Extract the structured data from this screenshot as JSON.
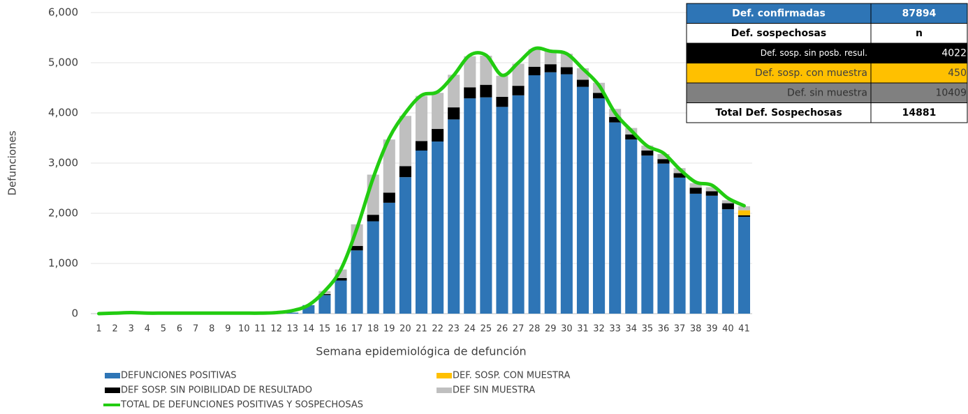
{
  "chart_data": {
    "type": "bar",
    "stacked": true,
    "x_label": "Semana epidemiológica de defunción",
    "y_label": "Defunciones",
    "categories": [
      "1",
      "2",
      "3",
      "4",
      "5",
      "6",
      "7",
      "8",
      "9",
      "10",
      "11",
      "12",
      "13",
      "14",
      "15",
      "16",
      "17",
      "18",
      "19",
      "20",
      "21",
      "22",
      "23",
      "24",
      "25",
      "26",
      "27",
      "28",
      "29",
      "30",
      "31",
      "32",
      "33",
      "34",
      "35",
      "36",
      "37",
      "38",
      "39",
      "40",
      "41"
    ],
    "series": [
      {
        "name": "DEFUNCIONES POSITIVAS",
        "color": "#2e75b6",
        "values": [
          0,
          0,
          0,
          0,
          0,
          0,
          0,
          0,
          0,
          0,
          0,
          0,
          20,
          170,
          370,
          660,
          1260,
          1840,
          2210,
          2720,
          3250,
          3430,
          3870,
          4290,
          4310,
          4120,
          4350,
          4750,
          4810,
          4770,
          4520,
          4290,
          3810,
          3470,
          3150,
          2990,
          2710,
          2390,
          2350,
          2080,
          1930
        ]
      },
      {
        "name": "DEF SOSP. SIN POIBILIDAD DE RESULTADO",
        "color": "#000000",
        "values": [
          0,
          0,
          0,
          0,
          0,
          0,
          0,
          0,
          0,
          0,
          0,
          0,
          0,
          0,
          20,
          50,
          90,
          130,
          200,
          220,
          190,
          250,
          240,
          220,
          250,
          200,
          190,
          170,
          160,
          140,
          140,
          110,
          110,
          100,
          100,
          90,
          90,
          120,
          90,
          120,
          30
        ]
      },
      {
        "name": "DEF. SOSP. CON MUESTRA",
        "color": "#ffc000",
        "values": [
          0,
          0,
          0,
          0,
          0,
          0,
          0,
          0,
          0,
          0,
          0,
          0,
          0,
          0,
          0,
          0,
          0,
          0,
          0,
          0,
          0,
          0,
          0,
          0,
          0,
          0,
          0,
          0,
          0,
          0,
          0,
          0,
          0,
          0,
          0,
          0,
          0,
          0,
          0,
          0,
          100
        ]
      },
      {
        "name": "DEF SIN MUESTRA",
        "color": "#bfbfbf",
        "values": [
          0,
          0,
          0,
          0,
          0,
          0,
          0,
          0,
          0,
          0,
          0,
          0,
          0,
          0,
          60,
          170,
          430,
          800,
          1060,
          1000,
          900,
          720,
          650,
          620,
          580,
          420,
          440,
          350,
          260,
          270,
          230,
          200,
          160,
          130,
          100,
          100,
          100,
          90,
          80,
          60,
          80
        ]
      },
      {
        "name": "TOTAL DE DEFUNCIONES POSITIVAS Y SOSPECHOSAS",
        "type": "line",
        "color": "#22cc11",
        "values": [
          0,
          10,
          20,
          10,
          10,
          10,
          10,
          10,
          10,
          10,
          10,
          20,
          60,
          170,
          450,
          880,
          1700,
          2700,
          3500,
          4000,
          4350,
          4420,
          4750,
          5150,
          5150,
          4750,
          5000,
          5280,
          5230,
          5180,
          4880,
          4550,
          4000,
          3650,
          3340,
          3200,
          2880,
          2620,
          2560,
          2300,
          2150
        ]
      }
    ],
    "ylim": [
      0,
      6000
    ],
    "yticks": [
      0,
      {
        "value": 1000,
        "label": "1,000"
      },
      {
        "value": 2000,
        "label": "2,000"
      },
      {
        "value": 3000,
        "label": "3,000"
      },
      {
        "value": 4000,
        "label": "4,000"
      },
      {
        "value": 5000,
        "label": "5,000"
      },
      {
        "value": 6000,
        "label": "6,000"
      }
    ],
    "grid": true,
    "legend": "bottom"
  },
  "table": {
    "rows": [
      [
        "Def. confirmadas",
        87894
      ],
      [
        "Def. sospechosas",
        "n"
      ],
      [
        "Def. sosp. sin posb. resul.",
        4022
      ],
      [
        "Def. sosp. con  muestra",
        450
      ],
      [
        "Def. sin muestra",
        10409
      ],
      [
        "Total Def. Sospechosas",
        14881
      ]
    ]
  }
}
